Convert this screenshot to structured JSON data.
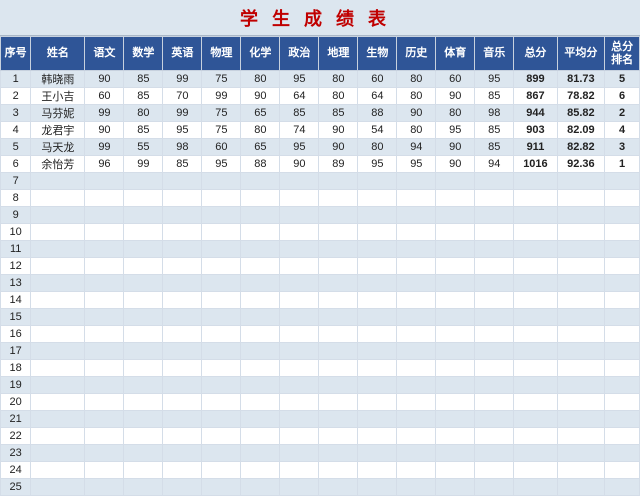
{
  "title": "学生成绩表",
  "colors": {
    "title_bg": "#dce6ef",
    "title_text": "#c00000",
    "header_bg": "#2f5597",
    "header_text": "#ffffff",
    "row_odd_bg": "#dce6ef",
    "row_even_bg": "#ffffff",
    "border": "#d4dde8"
  },
  "columns": [
    {
      "key": "seq",
      "label": "序号"
    },
    {
      "key": "name",
      "label": "姓名"
    },
    {
      "key": "s1",
      "label": "语文"
    },
    {
      "key": "s2",
      "label": "数学"
    },
    {
      "key": "s3",
      "label": "英语"
    },
    {
      "key": "s4",
      "label": "物理"
    },
    {
      "key": "s5",
      "label": "化学"
    },
    {
      "key": "s6",
      "label": "政治"
    },
    {
      "key": "s7",
      "label": "地理"
    },
    {
      "key": "s8",
      "label": "生物"
    },
    {
      "key": "s9",
      "label": "历史"
    },
    {
      "key": "s10",
      "label": "体育"
    },
    {
      "key": "s11",
      "label": "音乐"
    },
    {
      "key": "total",
      "label": "总分"
    },
    {
      "key": "avg",
      "label": "平均分"
    },
    {
      "key": "rank",
      "label": "总分\n排名"
    }
  ],
  "rows": [
    {
      "seq": "1",
      "name": "韩晓雨",
      "s1": "90",
      "s2": "85",
      "s3": "99",
      "s4": "75",
      "s5": "80",
      "s6": "95",
      "s7": "80",
      "s8": "60",
      "s9": "80",
      "s10": "60",
      "s11": "95",
      "total": "899",
      "avg": "81.73",
      "rank": "5"
    },
    {
      "seq": "2",
      "name": "王小吉",
      "s1": "60",
      "s2": "85",
      "s3": "70",
      "s4": "99",
      "s5": "90",
      "s6": "64",
      "s7": "80",
      "s8": "64",
      "s9": "80",
      "s10": "90",
      "s11": "85",
      "total": "867",
      "avg": "78.82",
      "rank": "6"
    },
    {
      "seq": "3",
      "name": "马芬妮",
      "s1": "99",
      "s2": "80",
      "s3": "99",
      "s4": "75",
      "s5": "65",
      "s6": "85",
      "s7": "85",
      "s8": "88",
      "s9": "90",
      "s10": "80",
      "s11": "98",
      "total": "944",
      "avg": "85.82",
      "rank": "2"
    },
    {
      "seq": "4",
      "name": "龙君宇",
      "s1": "90",
      "s2": "85",
      "s3": "95",
      "s4": "75",
      "s5": "80",
      "s6": "74",
      "s7": "90",
      "s8": "54",
      "s9": "80",
      "s10": "95",
      "s11": "85",
      "total": "903",
      "avg": "82.09",
      "rank": "4"
    },
    {
      "seq": "5",
      "name": "马天龙",
      "s1": "99",
      "s2": "55",
      "s3": "98",
      "s4": "60",
      "s5": "65",
      "s6": "95",
      "s7": "90",
      "s8": "80",
      "s9": "94",
      "s10": "90",
      "s11": "85",
      "total": "911",
      "avg": "82.82",
      "rank": "3"
    },
    {
      "seq": "6",
      "name": "余怡芳",
      "s1": "96",
      "s2": "99",
      "s3": "85",
      "s4": "95",
      "s5": "88",
      "s6": "90",
      "s7": "89",
      "s8": "95",
      "s9": "95",
      "s10": "90",
      "s11": "94",
      "total": "1016",
      "avg": "92.36",
      "rank": "1"
    }
  ],
  "empty_rows": [
    "7",
    "8",
    "9",
    "10",
    "11",
    "12",
    "13",
    "14",
    "15",
    "16",
    "17",
    "18",
    "19",
    "20",
    "21",
    "22",
    "23",
    "24",
    "25"
  ]
}
